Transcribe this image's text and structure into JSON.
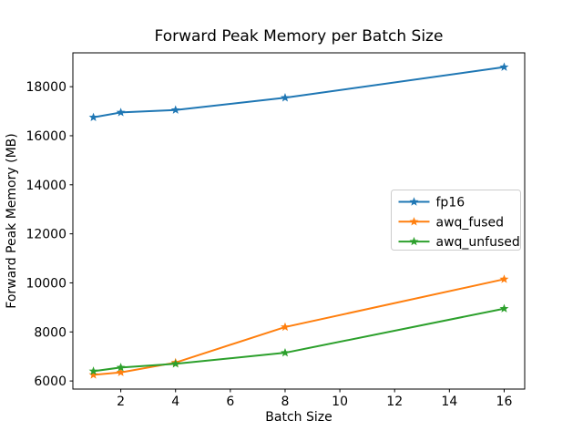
{
  "chart_data": {
    "type": "line",
    "title": "Forward Peak Memory per Batch Size",
    "xlabel": "Batch Size",
    "ylabel": "Forward Peak Memory (MB)",
    "x": [
      1,
      2,
      4,
      8,
      16
    ],
    "series": [
      {
        "name": "fp16",
        "color": "#1f77b4",
        "marker": "star",
        "values": [
          16750,
          16950,
          17050,
          17550,
          18800
        ]
      },
      {
        "name": "awq_fused",
        "color": "#ff7f0e",
        "marker": "star",
        "values": [
          6250,
          6350,
          6750,
          8200,
          10150
        ]
      },
      {
        "name": "awq_unfused",
        "color": "#2ca02c",
        "marker": "star",
        "values": [
          6400,
          6550,
          6700,
          7150,
          8950
        ]
      }
    ],
    "xticks": [
      2,
      4,
      6,
      8,
      10,
      12,
      14,
      16
    ],
    "yticks": [
      6000,
      8000,
      10000,
      12000,
      14000,
      16000,
      18000
    ],
    "xlim": [
      0.25,
      16.75
    ],
    "ylim": [
      5670,
      19380
    ],
    "grid": false,
    "background": "#ffffff",
    "axis_color": "#000000",
    "legend": {
      "location": "center right",
      "labels": [
        "fp16",
        "awq_fused",
        "awq_unfused"
      ],
      "border_color": "#cccccc",
      "background": "#ffffff"
    }
  }
}
